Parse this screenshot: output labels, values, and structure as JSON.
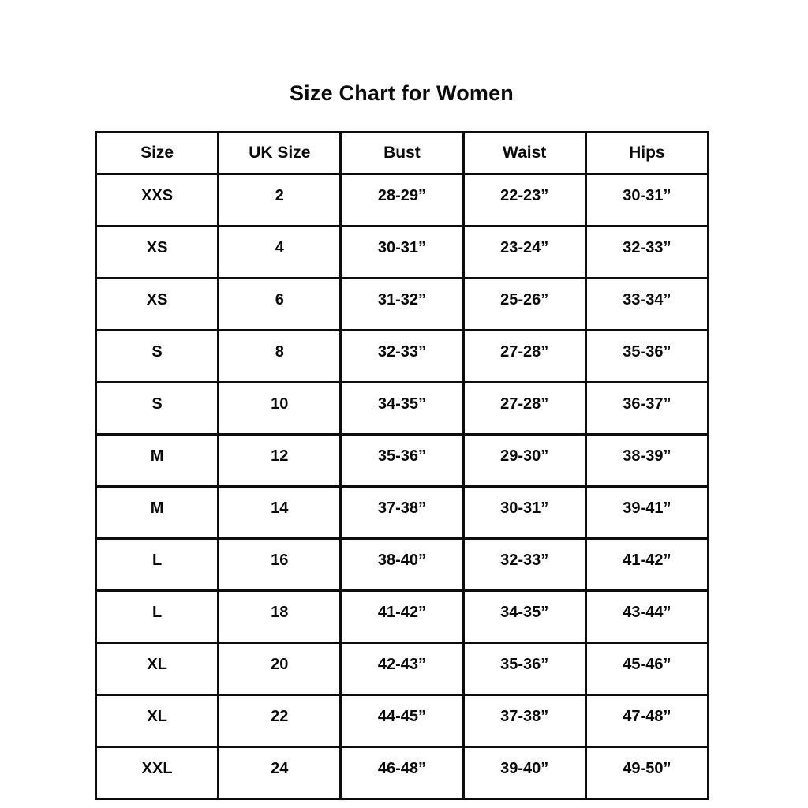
{
  "page": {
    "background": "#ffffff",
    "text_color": "#0a0a0a",
    "border_color": "#0d0d0d"
  },
  "chart_data": {
    "type": "table",
    "title": "Size Chart for Women",
    "columns": [
      "Size",
      "UK Size",
      "Bust",
      "Waist",
      "Hips"
    ],
    "rows": [
      [
        "XXS",
        "2",
        "28-29”",
        "22-23”",
        "30-31”"
      ],
      [
        "XS",
        "4",
        "30-31”",
        "23-24”",
        "32-33”"
      ],
      [
        "XS",
        "6",
        "31-32”",
        "25-26”",
        "33-34”"
      ],
      [
        "S",
        "8",
        "32-33”",
        "27-28”",
        "35-36”"
      ],
      [
        "S",
        "10",
        "34-35”",
        "27-28”",
        "36-37”"
      ],
      [
        "M",
        "12",
        "35-36”",
        "29-30”",
        "38-39”"
      ],
      [
        "M",
        "14",
        "37-38”",
        "30-31”",
        "39-41”"
      ],
      [
        "L",
        "16",
        "38-40”",
        "32-33”",
        "41-42”"
      ],
      [
        "L",
        "18",
        "41-42”",
        "34-35”",
        "43-44”"
      ],
      [
        "XL",
        "20",
        "42-43”",
        "35-36”",
        "45-46”"
      ],
      [
        "XL",
        "22",
        "44-45”",
        "37-38”",
        "47-48”"
      ],
      [
        "XXL",
        "24",
        "46-48”",
        "39-40”",
        "49-50”"
      ]
    ],
    "layout": {
      "grid": "full-borders",
      "header_position": "top",
      "units": "inches"
    }
  }
}
